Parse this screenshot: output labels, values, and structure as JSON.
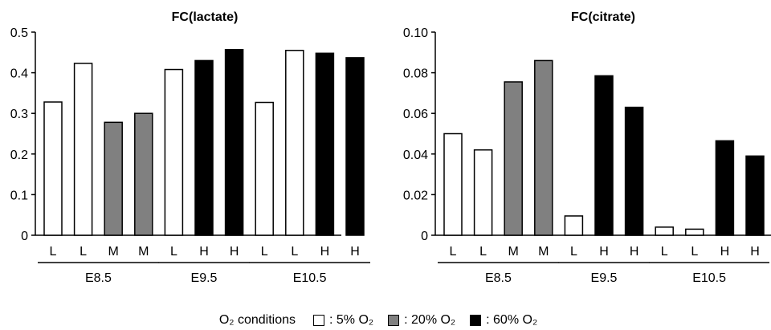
{
  "chart_data": [
    {
      "type": "bar",
      "title": "FC(lactate)",
      "ylim": [
        0,
        0.5
      ],
      "yticks": [
        "0",
        "0.1",
        "0.2",
        "0.3",
        "0.4",
        "0.5"
      ],
      "categories": [
        "L",
        "L",
        "M",
        "M",
        "L",
        "H",
        "H",
        "L",
        "L",
        "H",
        "H"
      ],
      "values": [
        0.328,
        0.423,
        0.278,
        0.3,
        0.408,
        0.43,
        0.457,
        0.327,
        0.455,
        0.448,
        0.437
      ],
      "conditions": [
        "5",
        "5",
        "20",
        "20",
        "5",
        "60",
        "60",
        "5",
        "5",
        "60",
        "60"
      ],
      "groups": [
        {
          "label": "E8.5",
          "start": 0,
          "end": 3
        },
        {
          "label": "E9.5",
          "start": 4,
          "end": 6
        },
        {
          "label": "E10.5",
          "start": 7,
          "end": 10
        }
      ],
      "grid": false
    },
    {
      "type": "bar",
      "title": "FC(citrate)",
      "ylim": [
        0,
        0.1
      ],
      "yticks": [
        "0",
        "0.02",
        "0.04",
        "0.06",
        "0.08",
        "0.10"
      ],
      "categories": [
        "L",
        "L",
        "M",
        "M",
        "L",
        "H",
        "H",
        "L",
        "L",
        "H",
        "H"
      ],
      "values": [
        0.05,
        0.042,
        0.0755,
        0.086,
        0.0095,
        0.0785,
        0.063,
        0.004,
        0.003,
        0.0465,
        0.039
      ],
      "conditions": [
        "5",
        "5",
        "20",
        "20",
        "5",
        "60",
        "60",
        "5",
        "5",
        "60",
        "60"
      ],
      "groups": [
        {
          "label": "E8.5",
          "start": 0,
          "end": 3
        },
        {
          "label": "E9.5",
          "start": 4,
          "end": 6
        },
        {
          "label": "E10.5",
          "start": 7,
          "end": 10
        }
      ],
      "grid": false
    }
  ],
  "colors": {
    "5": "#ffffff",
    "20": "#808080",
    "60": "#000000"
  },
  "legend": {
    "label": "O₂ conditions",
    "items": [
      {
        "key": "5",
        "label": ": 5% O₂"
      },
      {
        "key": "20",
        "label": ": 20% O₂"
      },
      {
        "key": "60",
        "label": ": 60% O₂"
      }
    ]
  }
}
